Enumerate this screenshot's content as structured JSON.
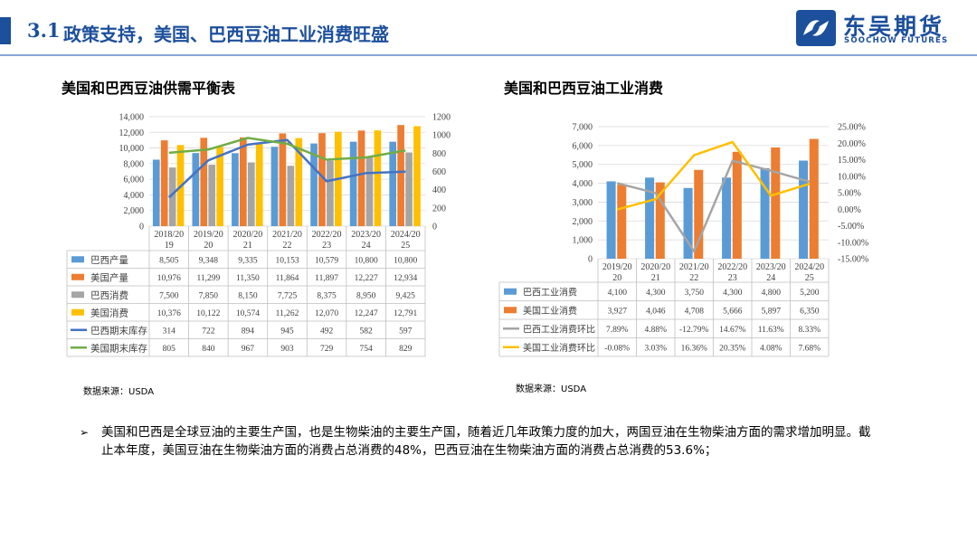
{
  "header": {
    "section_number": "3.1",
    "title": "政策支持，美国、巴西豆油工业消费旺盛",
    "logo_name": "东吴期货",
    "logo_sub": "SOOCHOW FUTURES"
  },
  "left": {
    "title": "美国和巴西豆油供需平衡表",
    "source": "数据来源：USDA"
  },
  "right": {
    "title": "美国和巴西豆油工业消费",
    "source": "数据来源：USDA"
  },
  "bullet": {
    "mark": "➢",
    "text": "美国和巴西是全球豆油的主要生产国，也是生物柴油的主要生产国，随着近几年政策力度的加大，两国豆油在生物柴油方面的需求增加明显。截止本年度，美国豆油在生物柴油方面的消费占总消费的48%，巴西豆油在生物柴油方面的消费占总消费的53.6%；"
  },
  "colors": {
    "brand": "#1c4f9c",
    "blue": "#5b9bd5",
    "orange": "#ed7d31",
    "gray": "#a5a5a5",
    "yellow": "#ffc000",
    "darkblue": "#4472c4",
    "green": "#70ad47"
  },
  "chart_data": [
    {
      "type": "bar",
      "categories": [
        "2018/2019",
        "2019/2020",
        "2020/2021",
        "2021/2022",
        "2022/2023",
        "2023/2024",
        "2024/2025"
      ],
      "category_labels": [
        [
          "2018/20",
          "19"
        ],
        [
          "2019/20",
          "20"
        ],
        [
          "2020/20",
          "21"
        ],
        [
          "2021/20",
          "22"
        ],
        [
          "2022/20",
          "23"
        ],
        [
          "2023/20",
          "24"
        ],
        [
          "2024/20",
          "25"
        ]
      ],
      "y_left": {
        "min": 0,
        "max": 14000,
        "step": 2000,
        "ticks": [
          "0",
          "2,000",
          "4,000",
          "6,000",
          "8,000",
          "10,000",
          "12,000",
          "14,000"
        ]
      },
      "y_right": {
        "min": 0,
        "max": 1200,
        "step": 200,
        "ticks": [
          "0",
          "200",
          "400",
          "600",
          "800",
          "1000",
          "1200"
        ]
      },
      "series": [
        {
          "name": "巴西产量",
          "kind": "bar",
          "axis": "left",
          "color": "#5b9bd5",
          "values": [
            8505,
            9348,
            9335,
            10153,
            10579,
            10800,
            10800
          ],
          "labels": [
            "8,505",
            "9,348",
            "9,335",
            "10,153",
            "10,579",
            "10,800",
            "10,800"
          ]
        },
        {
          "name": "美国产量",
          "kind": "bar",
          "axis": "left",
          "color": "#ed7d31",
          "values": [
            10976,
            11299,
            11350,
            11864,
            11897,
            12227,
            12934
          ],
          "labels": [
            "10,976",
            "11,299",
            "11,350",
            "11,864",
            "11,897",
            "12,227",
            "12,934"
          ]
        },
        {
          "name": "巴西消费",
          "kind": "bar",
          "axis": "left",
          "color": "#a5a5a5",
          "values": [
            7500,
            7850,
            8150,
            7725,
            8375,
            8950,
            9425
          ],
          "labels": [
            "7,500",
            "7,850",
            "8,150",
            "7,725",
            "8,375",
            "8,950",
            "9,425"
          ]
        },
        {
          "name": "美国消费",
          "kind": "bar",
          "axis": "left",
          "color": "#ffc000",
          "values": [
            10376,
            10122,
            10574,
            11262,
            12070,
            12247,
            12791
          ],
          "labels": [
            "10,376",
            "10,122",
            "10,574",
            "11,262",
            "12,070",
            "12,247",
            "12,791"
          ]
        },
        {
          "name": "巴西期末库存",
          "kind": "line",
          "axis": "right",
          "color": "#4472c4",
          "values": [
            314,
            722,
            894,
            945,
            492,
            582,
            597
          ],
          "labels": [
            "314",
            "722",
            "894",
            "945",
            "492",
            "582",
            "597"
          ]
        },
        {
          "name": "美国期末库存",
          "kind": "line",
          "axis": "right",
          "color": "#70ad47",
          "values": [
            805,
            840,
            967,
            903,
            729,
            754,
            829
          ],
          "labels": [
            "805",
            "840",
            "967",
            "903",
            "729",
            "754",
            "829"
          ]
        }
      ]
    },
    {
      "type": "bar",
      "categories": [
        "2019/2020",
        "2020/2021",
        "2021/2022",
        "2022/2023",
        "2023/2024",
        "2024/2025"
      ],
      "category_labels": [
        [
          "2019/20",
          "20"
        ],
        [
          "2020/20",
          "21"
        ],
        [
          "2021/20",
          "22"
        ],
        [
          "2022/20",
          "23"
        ],
        [
          "2023/20",
          "24"
        ],
        [
          "2024/20",
          "25"
        ]
      ],
      "y_left": {
        "min": 0,
        "max": 7000,
        "step": 1000,
        "ticks": [
          "0",
          "1,000",
          "2,000",
          "3,000",
          "4,000",
          "5,000",
          "6,000",
          "7,000"
        ]
      },
      "y_right": {
        "min": -15,
        "max": 25,
        "step": 5,
        "ticks": [
          "-15.00%",
          "-10.00%",
          "-5.00%",
          "0.00%",
          "5.00%",
          "10.00%",
          "15.00%",
          "20.00%",
          "25.00%"
        ]
      },
      "series": [
        {
          "name": "巴西工业消费",
          "kind": "bar",
          "axis": "left",
          "color": "#5b9bd5",
          "values": [
            4100,
            4300,
            3750,
            4300,
            4800,
            5200
          ],
          "labels": [
            "4,100",
            "4,300",
            "3,750",
            "4,300",
            "4,800",
            "5,200"
          ]
        },
        {
          "name": "美国工业消费",
          "kind": "bar",
          "axis": "left",
          "color": "#ed7d31",
          "values": [
            3927,
            4046,
            4708,
            5666,
            5897,
            6350
          ],
          "labels": [
            "3,927",
            "4,046",
            "4,708",
            "5,666",
            "5,897",
            "6,350"
          ]
        },
        {
          "name": "巴西工业消费环比",
          "kind": "line",
          "axis": "right",
          "color": "#a5a5a5",
          "values": [
            7.89,
            4.88,
            -12.79,
            14.67,
            11.63,
            8.33
          ],
          "labels": [
            "7.89%",
            "4.88%",
            "-12.79%",
            "14.67%",
            "11.63%",
            "8.33%"
          ]
        },
        {
          "name": "美国工业消费环比",
          "kind": "line",
          "axis": "right",
          "color": "#ffc000",
          "values": [
            -0.08,
            3.03,
            16.36,
            20.35,
            4.08,
            7.68
          ],
          "labels": [
            "-0.08%",
            "3.03%",
            "16.36%",
            "20.35%",
            "4.08%",
            "7.68%"
          ]
        }
      ]
    }
  ]
}
